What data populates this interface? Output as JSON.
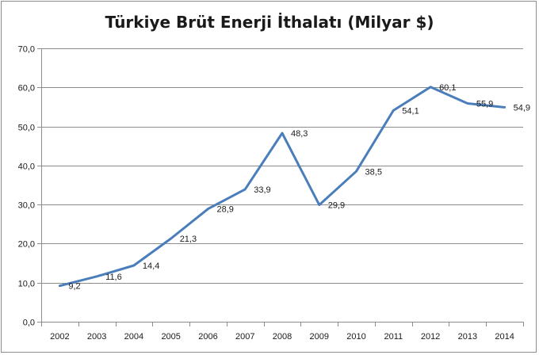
{
  "chart_data": {
    "type": "line",
    "title": "Türkiye Brüt Enerji İthalatı (Milyar $)",
    "xlabel": "",
    "ylabel": "",
    "categories": [
      "2002",
      "2003",
      "2004",
      "2005",
      "2006",
      "2007",
      "2008",
      "2009",
      "2010",
      "2011",
      "2012",
      "2013",
      "2014"
    ],
    "series": [
      {
        "values": [
          9.2,
          11.6,
          14.4,
          21.3,
          28.9,
          33.9,
          48.3,
          29.9,
          38.5,
          54.1,
          60.1,
          55.9,
          54.9
        ],
        "labels": [
          "9,2",
          "11,6",
          "14,4",
          "21,3",
          "28,9",
          "33,9",
          "48,3",
          "29,9",
          "38,5",
          "54,1",
          "60,1",
          "55,9",
          "54,9"
        ],
        "color": "#4a7ebb"
      }
    ],
    "ylim": [
      0,
      70
    ],
    "yticks": [
      "0,0",
      "10,0",
      "20,0",
      "30,0",
      "40,0",
      "50,0",
      "60,0",
      "70,0"
    ],
    "grid": true,
    "legend": "none"
  }
}
